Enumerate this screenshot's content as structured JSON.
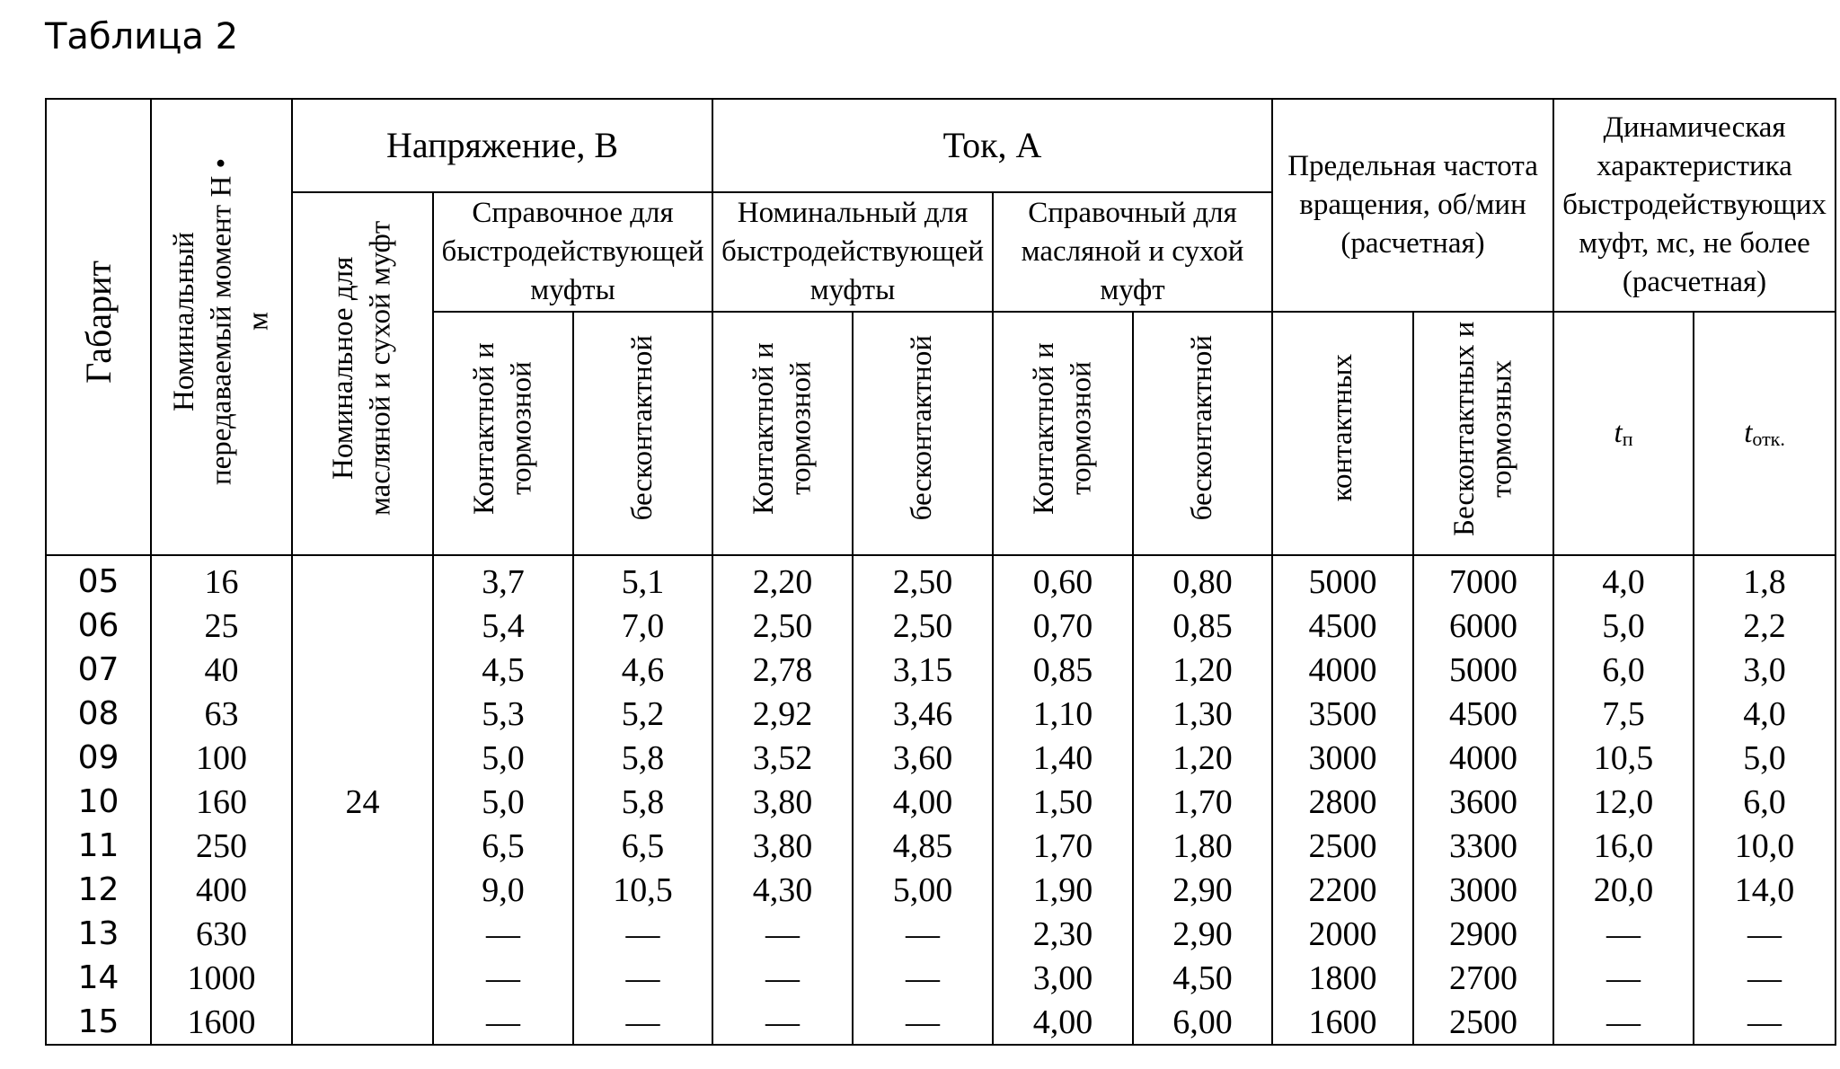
{
  "title": "Таблица 2",
  "header": {
    "gabarit": "Габарит",
    "moment": "Номинальный передаваемый момент Н • м",
    "voltage": "Напряжение, В",
    "current": "Ток, А",
    "speed": "Предельная частота вращения, об/мин (расчетная)",
    "dynamic": "Динамическая характеристика быстродействующих муфт, мс, не более (расчетная)",
    "v_nominal": "Номинальное для масляной и сухой муфт",
    "v_ref": "Справочное для быстродействующей муфты",
    "i_nominal": "Номинальный для быстродействующей муфты",
    "i_ref": "Справочный для масляной и сухой муфт",
    "contact_brake": "Контактной и тормозной",
    "contactless": "бесконтактной",
    "contact_pl": "контактных",
    "contactless_brake_pl": "Бесконтактных и тормозных",
    "t_on": "t",
    "t_on_sub": "п",
    "t_off": "t",
    "t_off_sub": "отк."
  },
  "voltage_nominal_value": "24",
  "rows": [
    [
      "05",
      "16",
      "3,7",
      "5,1",
      "2,20",
      "2,50",
      "0,60",
      "0,80",
      "5000",
      "7000",
      "4,0",
      "1,8"
    ],
    [
      "06",
      "25",
      "5,4",
      "7,0",
      "2,50",
      "2,50",
      "0,70",
      "0,85",
      "4500",
      "6000",
      "5,0",
      "2,2"
    ],
    [
      "07",
      "40",
      "4,5",
      "4,6",
      "2,78",
      "3,15",
      "0,85",
      "1,20",
      "4000",
      "5000",
      "6,0",
      "3,0"
    ],
    [
      "08",
      "63",
      "5,3",
      "5,2",
      "2,92",
      "3,46",
      "1,10",
      "1,30",
      "3500",
      "4500",
      "7,5",
      "4,0"
    ],
    [
      "09",
      "100",
      "5,0",
      "5,8",
      "3,52",
      "3,60",
      "1,40",
      "1,20",
      "3000",
      "4000",
      "10,5",
      "5,0"
    ],
    [
      "10",
      "160",
      "5,0",
      "5,8",
      "3,80",
      "4,00",
      "1,50",
      "1,70",
      "2800",
      "3600",
      "12,0",
      "6,0"
    ],
    [
      "11",
      "250",
      "6,5",
      "6,5",
      "3,80",
      "4,85",
      "1,70",
      "1,80",
      "2500",
      "3300",
      "16,0",
      "10,0"
    ],
    [
      "12",
      "400",
      "9,0",
      "10,5",
      "4,30",
      "5,00",
      "1,90",
      "2,90",
      "2200",
      "3000",
      "20,0",
      "14,0"
    ],
    [
      "13",
      "630",
      "—",
      "—",
      "—",
      "—",
      "2,30",
      "2,90",
      "2000",
      "2900",
      "—",
      "—"
    ],
    [
      "14",
      "1000",
      "—",
      "—",
      "—",
      "—",
      "3,00",
      "4,50",
      "1800",
      "2700",
      "—",
      "—"
    ],
    [
      "15",
      "1600",
      "—",
      "—",
      "—",
      "—",
      "4,00",
      "6,00",
      "1600",
      "2500",
      "—",
      "—"
    ]
  ]
}
